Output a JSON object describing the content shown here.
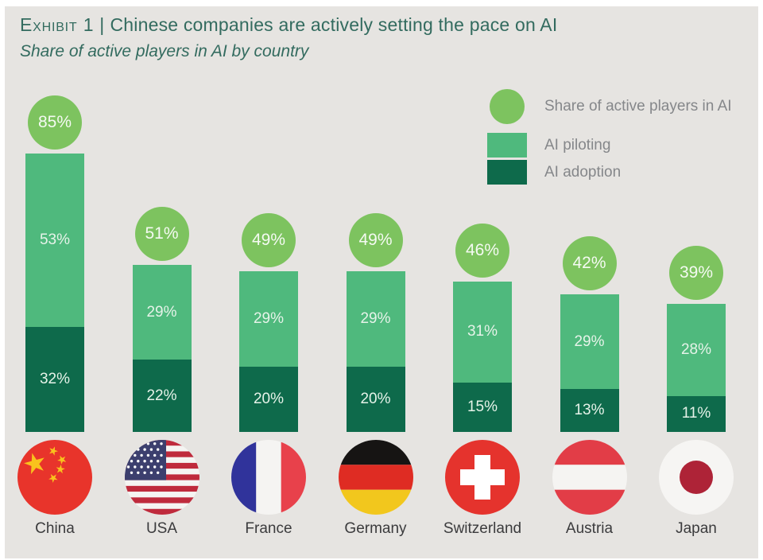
{
  "header": {
    "exhibit_label": "Exhibit 1",
    "separator": "|",
    "title": "Chinese companies are actively setting the pace on AI",
    "subtitle": "Share of active players in AI by country"
  },
  "legend": {
    "circle_label": "Share of active players in AI",
    "piloting_label": "AI piloting",
    "adoption_label": "AI adoption"
  },
  "colors": {
    "background": "#e6e4e1",
    "title_text": "#336b5f",
    "total_circle": "#7dc35f",
    "piloting": "#4fb97d",
    "adoption": "#0e6a4b",
    "bar_label": "#e6f3e9",
    "legend_text": "#85878a",
    "country_label": "#3b3b3d"
  },
  "chart_data": {
    "type": "bar",
    "stacked": true,
    "grid": false,
    "legend_position": "top-right",
    "value_suffix": "%",
    "title": "Share of active players in AI by country",
    "ylim": [
      0,
      100
    ],
    "categories": [
      "China",
      "USA",
      "France",
      "Germany",
      "Switzerland",
      "Austria",
      "Japan"
    ],
    "totals": [
      85,
      51,
      49,
      49,
      46,
      42,
      39
    ],
    "series": [
      {
        "name": "AI adoption",
        "values": [
          32,
          22,
          20,
          20,
          15,
          13,
          11
        ]
      },
      {
        "name": "AI piloting",
        "values": [
          53,
          29,
          29,
          29,
          31,
          29,
          28
        ]
      }
    ],
    "countries": [
      {
        "label": "China",
        "flag": "china",
        "total": 85,
        "piloting": 53,
        "adoption": 32
      },
      {
        "label": "USA",
        "flag": "usa",
        "total": 51,
        "piloting": 29,
        "adoption": 22
      },
      {
        "label": "France",
        "flag": "france",
        "total": 49,
        "piloting": 29,
        "adoption": 20
      },
      {
        "label": "Germany",
        "flag": "germany",
        "total": 49,
        "piloting": 29,
        "adoption": 20
      },
      {
        "label": "Switzerland",
        "flag": "switzerland",
        "total": 46,
        "piloting": 31,
        "adoption": 15
      },
      {
        "label": "Austria",
        "flag": "austria",
        "total": 42,
        "piloting": 29,
        "adoption": 13
      },
      {
        "label": "Japan",
        "flag": "japan",
        "total": 39,
        "piloting": 28,
        "adoption": 11
      }
    ]
  },
  "flags": {
    "china": {
      "bg": "#e8342b",
      "star": "#f9c21d"
    },
    "usa": {
      "canton": "#3c3f6e",
      "red": "#bf2a3c",
      "white": "#f5f4f2"
    },
    "france": {
      "blue": "#30339b",
      "white": "#f5f4f2",
      "red": "#e8414b"
    },
    "germany": {
      "black": "#161413",
      "red": "#df2c23",
      "gold": "#f2c71d"
    },
    "switzerland": {
      "red": "#e5332d",
      "white": "#ffffff"
    },
    "austria": {
      "red": "#e23d47",
      "white": "#f5f4f2"
    },
    "japan": {
      "white": "#f6f5f3",
      "disc": "#ae2337"
    }
  }
}
